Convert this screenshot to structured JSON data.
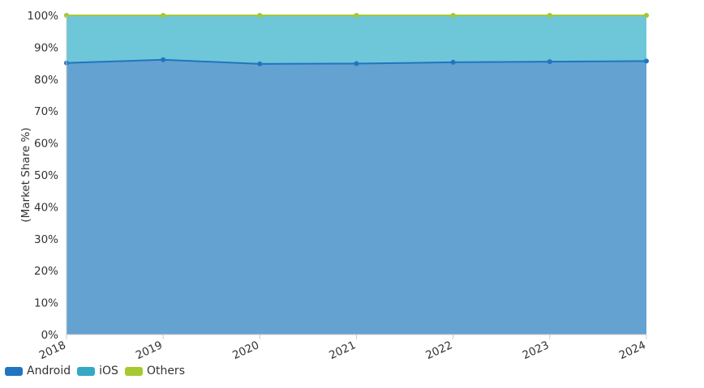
{
  "chart_data": {
    "type": "area",
    "stacked": true,
    "percent": true,
    "x": [
      "2018",
      "2019",
      "2020",
      "2021",
      "2022",
      "2023",
      "2024"
    ],
    "series": [
      {
        "name": "Android",
        "values": [
          85.1,
          86.1,
          84.8,
          84.9,
          85.3,
          85.5,
          85.7
        ],
        "line_color": "#1f75c0",
        "fill_color": "#64a2d2"
      },
      {
        "name": "iOS",
        "values": [
          14.9,
          13.9,
          15.2,
          15.1,
          14.7,
          14.5,
          14.3
        ],
        "line_color": "#36a8c4",
        "fill_color": "#6ec6d9"
      },
      {
        "name": "Others",
        "values": [
          0.0,
          0.0,
          0.0,
          0.0,
          0.0,
          0.0,
          0.0
        ],
        "line_color": "#a6c932",
        "fill_color": "#a6c932"
      }
    ],
    "ylabel": "(Market Share %)",
    "xlabel": "",
    "ylim": [
      0,
      100
    ],
    "y_ticks": [
      "0%",
      "10%",
      "20%",
      "30%",
      "40%",
      "50%",
      "60%",
      "70%",
      "80%",
      "90%",
      "100%"
    ],
    "grid": false,
    "legend_position": "bottom-left"
  }
}
